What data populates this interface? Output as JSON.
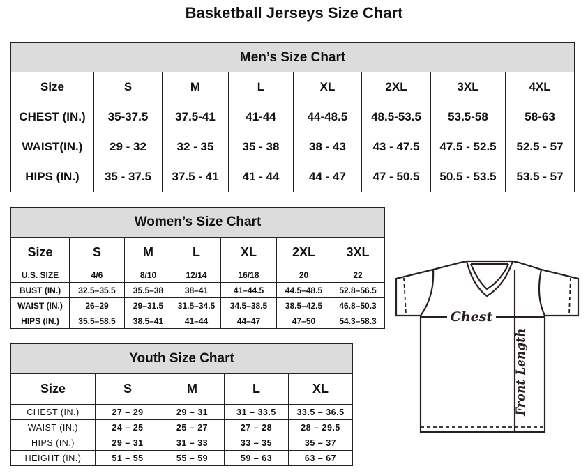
{
  "title": "Basketball Jerseys Size Chart",
  "men": {
    "heading": "Men’s Size Chart",
    "header": [
      "Size",
      "S",
      "M",
      "L",
      "XL",
      "2XL",
      "3XL",
      "4XL"
    ],
    "rows": [
      [
        "CHEST (IN.)",
        "35-37.5",
        "37.5-41",
        "41-44",
        "44-48.5",
        "48.5-53.5",
        "53.5-58",
        "58-63"
      ],
      [
        "WAIST(IN.)",
        "29 - 32",
        "32 - 35",
        "35 - 38",
        "38 - 43",
        "43 - 47.5",
        "47.5 - 52.5",
        "52.5 - 57"
      ],
      [
        "HIPS (IN.)",
        "35 - 37.5",
        "37.5 - 41",
        "41 - 44",
        "44 - 47",
        "47 - 50.5",
        "50.5 - 53.5",
        "53.5 - 57"
      ]
    ]
  },
  "women": {
    "heading": "Women’s Size Chart",
    "header": [
      "Size",
      "S",
      "M",
      "L",
      "XL",
      "2XL",
      "3XL"
    ],
    "rows": [
      [
        "U.S.  SIZE",
        "4/6",
        "8/10",
        "12/14",
        "16/18",
        "20",
        "22"
      ],
      [
        "BUST  (IN.)",
        "32.5–35.5",
        "35.5–38",
        "38–41",
        "41–44.5",
        "44.5–48.5",
        "52.8–56.5"
      ],
      [
        "WAIST  (IN.)",
        "26–29",
        "29–31.5",
        "31.5–34.5",
        "34.5–38.5",
        "38.5–42.5",
        "46.8–50.3"
      ],
      [
        "HIPS  (IN.)",
        "35.5–58.5",
        "38.5–41",
        "41–44",
        "44–47",
        "47–50",
        "54.3–58.3"
      ]
    ]
  },
  "youth": {
    "heading": "Youth Size Chart",
    "header": [
      "Size",
      "S",
      "M",
      "L",
      "XL"
    ],
    "rows": [
      [
        "CHEST  (IN.)",
        "27  –  29",
        "29  –  31",
        "31  –  33.5",
        "33.5  –  36.5"
      ],
      [
        "WAIST  (IN.)",
        "24  –  25",
        "25  –  27",
        "27  –  28",
        "28  –  29.5"
      ],
      [
        "HIPS  (IN.)",
        "29  –  31",
        "31  –  33",
        "33  –  35",
        "35  –  37"
      ],
      [
        "HEIGHT  (IN.)",
        "51  –  55",
        "55  –  59",
        "59  –  63",
        "63  –  67"
      ]
    ]
  },
  "diagram": {
    "chest_label": "Chest",
    "length_label": "Front Length"
  }
}
